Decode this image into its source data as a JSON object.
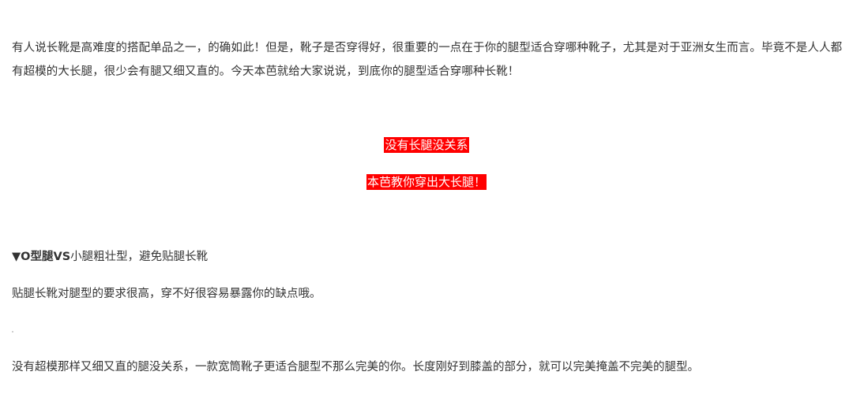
{
  "article": {
    "intro": "有人说长靴是高难度的搭配单品之一，的确如此！但是，靴子是否穿得好，很重要的一点在于你的腿型适合穿哪种靴子，尤其是对于亚洲女生而言。毕竟不是人人都有超模的大长腿，很少会有腿又细又直的。今天本芭就给大家说说，到底你的腿型适合穿哪种长靴！",
    "callouts": [
      "没有长腿没关系",
      "本芭教你穿出大长腿！"
    ],
    "callout_background": "#ff0000",
    "callout_text_color": "#ffffff",
    "section": {
      "marker": "▼O型腿VS",
      "heading_rest": "小腿粗壮型，避免贴腿长靴"
    },
    "paragraphs": [
      "贴腿长靴对腿型的要求很高，穿不好很容易暴露你的缺点哦。",
      "没有超模那样又细又直的腿没关系，一款宽筒靴子更适合腿型不那么完美的你。长度刚好到膝盖的部分，就可以完美掩盖不完美的腿型。"
    ]
  }
}
